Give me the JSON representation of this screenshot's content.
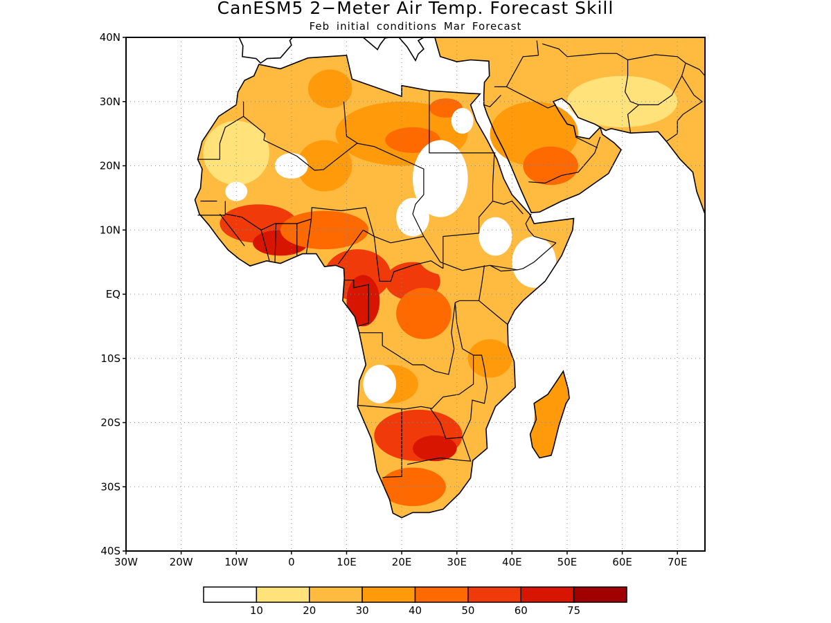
{
  "title": "CanESM5 2−Meter Air Temp. Forecast Skill",
  "subtitle": "Feb initial conditions  Mar Forecast",
  "map": {
    "lon_range": [
      -30,
      75
    ],
    "lat_range": [
      -40,
      40
    ],
    "grid": "dotted",
    "region": "Africa and Middle East"
  },
  "x_ticks": [
    {
      "lon": -30,
      "label": "30W"
    },
    {
      "lon": -20,
      "label": "20W"
    },
    {
      "lon": -10,
      "label": "10W"
    },
    {
      "lon": 0,
      "label": "0"
    },
    {
      "lon": 10,
      "label": "10E"
    },
    {
      "lon": 20,
      "label": "20E"
    },
    {
      "lon": 30,
      "label": "30E"
    },
    {
      "lon": 40,
      "label": "40E"
    },
    {
      "lon": 50,
      "label": "50E"
    },
    {
      "lon": 60,
      "label": "60E"
    },
    {
      "lon": 70,
      "label": "70E"
    }
  ],
  "y_ticks": [
    {
      "lat": 40,
      "label": "40N"
    },
    {
      "lat": 30,
      "label": "30N"
    },
    {
      "lat": 20,
      "label": "20N"
    },
    {
      "lat": 10,
      "label": "10N"
    },
    {
      "lat": 0,
      "label": "EQ"
    },
    {
      "lat": -10,
      "label": "10S"
    },
    {
      "lat": -20,
      "label": "20S"
    },
    {
      "lat": -30,
      "label": "30S"
    },
    {
      "lat": -40,
      "label": "40S"
    }
  ],
  "colorbar": {
    "colors": [
      "#ffffff",
      "#ffe27a",
      "#ffbb40",
      "#ff9a0a",
      "#ff6a00",
      "#f03a0a",
      "#d81500",
      "#a00000"
    ],
    "labels": [
      "10",
      "20",
      "30",
      "40",
      "50",
      "60",
      "75"
    ]
  },
  "fields": [
    {
      "lon": -5,
      "lat": 28,
      "level": 2,
      "rx": 14,
      "ry": 6
    },
    {
      "lon": 2,
      "lat": 24,
      "level": 2,
      "rx": 10,
      "ry": 8
    },
    {
      "lon": 20,
      "lat": 25,
      "level": 3,
      "rx": 12,
      "ry": 5
    },
    {
      "lon": 22,
      "lat": 24,
      "level": 4,
      "rx": 5,
      "ry": 2
    },
    {
      "lon": 28,
      "lat": 29,
      "level": 4,
      "rx": 3,
      "ry": 1.5
    },
    {
      "lon": 7,
      "lat": 32,
      "level": 3,
      "rx": 4,
      "ry": 3
    },
    {
      "lon": -10,
      "lat": 22,
      "level": 1,
      "rx": 6,
      "ry": 5
    },
    {
      "lon": 6,
      "lat": 20,
      "level": 3,
      "rx": 5,
      "ry": 4
    },
    {
      "lon": -6,
      "lat": 11,
      "level": 5,
      "rx": 7,
      "ry": 3
    },
    {
      "lon": -2,
      "lat": 8,
      "level": 6,
      "rx": 5,
      "ry": 2
    },
    {
      "lon": 6,
      "lat": 10,
      "level": 4,
      "rx": 8,
      "ry": 3
    },
    {
      "lon": 12,
      "lat": 3,
      "level": 5,
      "rx": 6,
      "ry": 4
    },
    {
      "lon": 13,
      "lat": -1,
      "level": 6,
      "rx": 3,
      "ry": 4
    },
    {
      "lon": 22,
      "lat": 2,
      "level": 5,
      "rx": 5,
      "ry": 3
    },
    {
      "lon": 24,
      "lat": -3,
      "level": 4,
      "rx": 5,
      "ry": 4
    },
    {
      "lon": 28,
      "lat": 6,
      "level": 2,
      "rx": 5,
      "ry": 3
    },
    {
      "lon": 37,
      "lat": -3,
      "level": 2,
      "rx": 4,
      "ry": 4
    },
    {
      "lon": 36,
      "lat": -10,
      "level": 3,
      "rx": 4,
      "ry": 3
    },
    {
      "lon": 18,
      "lat": -14,
      "level": 3,
      "rx": 5,
      "ry": 3
    },
    {
      "lon": 23,
      "lat": -22,
      "level": 5,
      "rx": 8,
      "ry": 4
    },
    {
      "lon": 26,
      "lat": -24,
      "level": 6,
      "rx": 4,
      "ry": 2
    },
    {
      "lon": 22,
      "lat": -30,
      "level": 4,
      "rx": 6,
      "ry": 3
    },
    {
      "lon": 46,
      "lat": -20,
      "level": 3,
      "rx": 2,
      "ry": 4
    },
    {
      "lon": 44,
      "lat": 25,
      "level": 3,
      "rx": 8,
      "ry": 5
    },
    {
      "lon": 47,
      "lat": 20,
      "level": 4,
      "rx": 5,
      "ry": 3
    },
    {
      "lon": 37,
      "lat": 35,
      "level": 3,
      "rx": 4,
      "ry": 3
    },
    {
      "lon": 60,
      "lat": 30,
      "level": 1,
      "rx": 10,
      "ry": 4
    }
  ]
}
